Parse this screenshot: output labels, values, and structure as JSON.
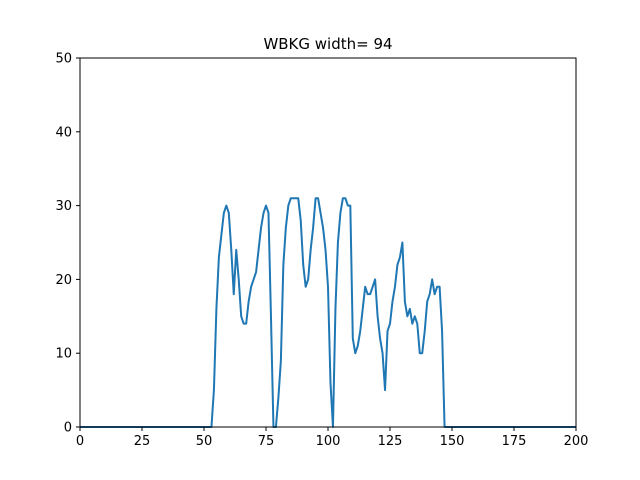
{
  "chart_data": {
    "type": "line",
    "title": "WBKG width= 94",
    "xlabel": "",
    "ylabel": "",
    "xlim": [
      0,
      200
    ],
    "ylim": [
      0,
      50
    ],
    "xticks": [
      0,
      25,
      50,
      75,
      100,
      125,
      150,
      175,
      200
    ],
    "yticks": [
      0,
      10,
      20,
      30,
      40,
      50
    ],
    "grid": false,
    "legend": "none",
    "series": [
      {
        "color": "#1f77b4",
        "x": [
          0,
          52,
          53,
          54,
          55,
          56,
          57,
          58,
          59,
          60,
          61,
          62,
          63,
          64,
          65,
          66,
          67,
          68,
          69,
          70,
          71,
          72,
          73,
          74,
          75,
          76,
          77,
          78,
          79,
          80,
          81,
          82,
          83,
          84,
          85,
          86,
          87,
          88,
          89,
          90,
          91,
          92,
          93,
          94,
          95,
          96,
          97,
          98,
          99,
          100,
          101,
          102,
          103,
          104,
          105,
          106,
          107,
          108,
          109,
          110,
          111,
          112,
          113,
          114,
          115,
          116,
          117,
          118,
          119,
          120,
          121,
          122,
          123,
          124,
          125,
          126,
          127,
          128,
          129,
          130,
          131,
          132,
          133,
          134,
          135,
          136,
          137,
          138,
          139,
          140,
          141,
          142,
          143,
          144,
          145,
          146,
          147,
          148,
          200
        ],
        "y": [
          0,
          0,
          0,
          5,
          16,
          23,
          26,
          29,
          30,
          29,
          24,
          18,
          24,
          20,
          15,
          14,
          14,
          17,
          19,
          20,
          21,
          24,
          27,
          29,
          30,
          29,
          15,
          0,
          0,
          4,
          9,
          22,
          27,
          30,
          31,
          31,
          31,
          31,
          28,
          22,
          19,
          20,
          24,
          27,
          31,
          31,
          29,
          27,
          24,
          19,
          6,
          0,
          16,
          25,
          29,
          31,
          31,
          30,
          30,
          12,
          10,
          11,
          13,
          16,
          19,
          18,
          18,
          19,
          20,
          15,
          12,
          10,
          5,
          13,
          14,
          17,
          19,
          22,
          23,
          25,
          17,
          15,
          16,
          14,
          15,
          14,
          10,
          10,
          13,
          17,
          18,
          20,
          18,
          19,
          19,
          13,
          0,
          0,
          0
        ]
      }
    ]
  }
}
